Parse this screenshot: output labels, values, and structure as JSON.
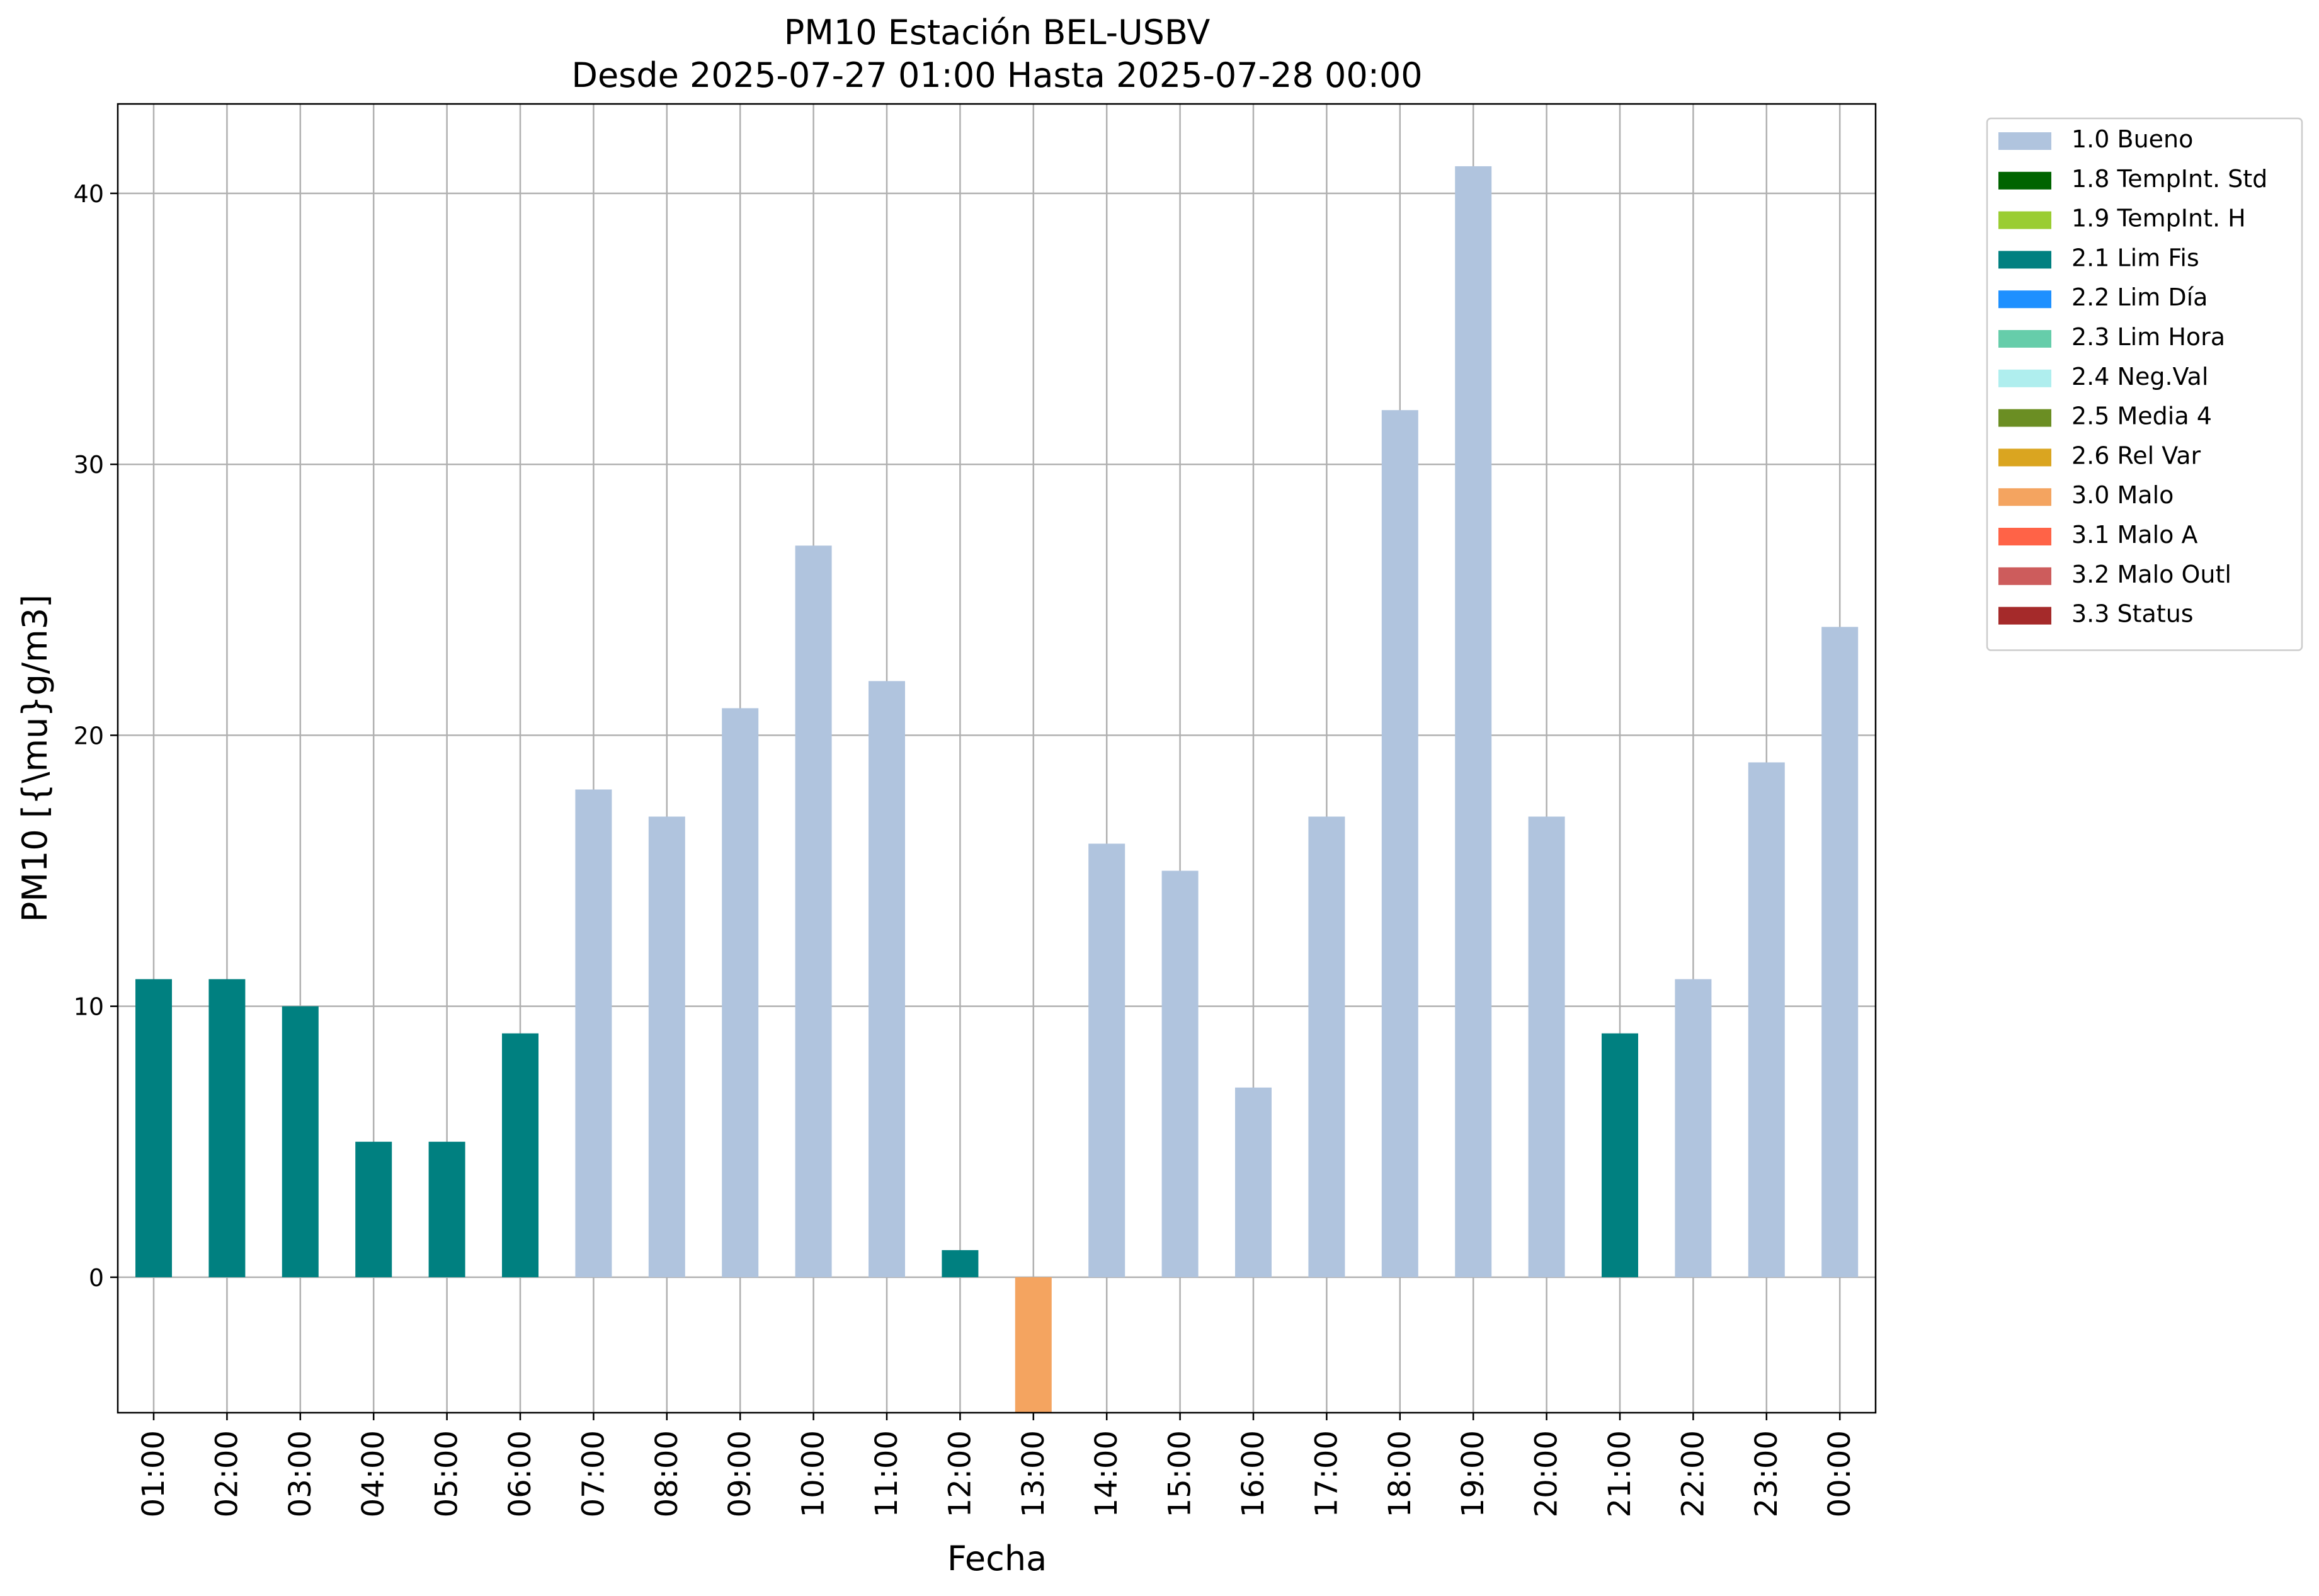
{
  "chart_data": {
    "type": "bar",
    "title": "PM10 Estación BEL-USBV",
    "subtitle": "Desde 2025-07-27 01:00 Hasta 2025-07-28 00:00",
    "xlabel": "Fecha",
    "ylabel": "PM10 [{\\mu}g/m3]",
    "categories": [
      "01:00",
      "02:00",
      "03:00",
      "04:00",
      "05:00",
      "06:00",
      "07:00",
      "08:00",
      "09:00",
      "10:00",
      "11:00",
      "12:00",
      "13:00",
      "14:00",
      "15:00",
      "16:00",
      "17:00",
      "18:00",
      "19:00",
      "20:00",
      "21:00",
      "22:00",
      "23:00",
      "00:00"
    ],
    "values": [
      11,
      11,
      10,
      5,
      5,
      9,
      18,
      17,
      21,
      27,
      22,
      1,
      -5,
      16,
      15,
      7,
      17,
      32,
      41,
      17,
      9,
      11,
      19,
      24
    ],
    "flags": [
      "2.1 Lim Fis",
      "2.1 Lim Fis",
      "2.1 Lim Fis",
      "2.1 Lim Fis",
      "2.1 Lim Fis",
      "2.1 Lim Fis",
      "1.0 Bueno",
      "1.0 Bueno",
      "1.0 Bueno",
      "1.0 Bueno",
      "1.0 Bueno",
      "2.1 Lim Fis",
      "3.0 Malo",
      "1.0 Bueno",
      "1.0 Bueno",
      "1.0 Bueno",
      "1.0 Bueno",
      "1.0 Bueno",
      "1.0 Bueno",
      "1.0 Bueno",
      "2.1 Lim Fis",
      "1.0 Bueno",
      "1.0 Bueno",
      "1.0 Bueno"
    ],
    "ylim": [
      -5,
      43.3
    ],
    "yticks": [
      0,
      10,
      20,
      30,
      40
    ],
    "grid": true,
    "legend_position": "outside-top-right",
    "legend": [
      {
        "label": "1.0 Bueno",
        "color": "#b0c4de"
      },
      {
        "label": "1.8 TempInt. Std",
        "color": "#006400"
      },
      {
        "label": "1.9 TempInt. H",
        "color": "#9acd32"
      },
      {
        "label": "2.1 Lim Fis",
        "color": "#008080"
      },
      {
        "label": "2.2 Lim Día",
        "color": "#1e90ff"
      },
      {
        "label": "2.3 Lim Hora",
        "color": "#66cdaa"
      },
      {
        "label": "2.4 Neg.Val",
        "color": "#afeeee"
      },
      {
        "label": "2.5 Media 4",
        "color": "#6b8e23"
      },
      {
        "label": "2.6 Rel Var",
        "color": "#daa520"
      },
      {
        "label": "3.0 Malo",
        "color": "#f4a460"
      },
      {
        "label": "3.1 Malo A",
        "color": "#ff6347"
      },
      {
        "label": "3.2 Malo Outl",
        "color": "#cd5c5c"
      },
      {
        "label": "3.3 Status",
        "color": "#a52a2a"
      }
    ]
  }
}
